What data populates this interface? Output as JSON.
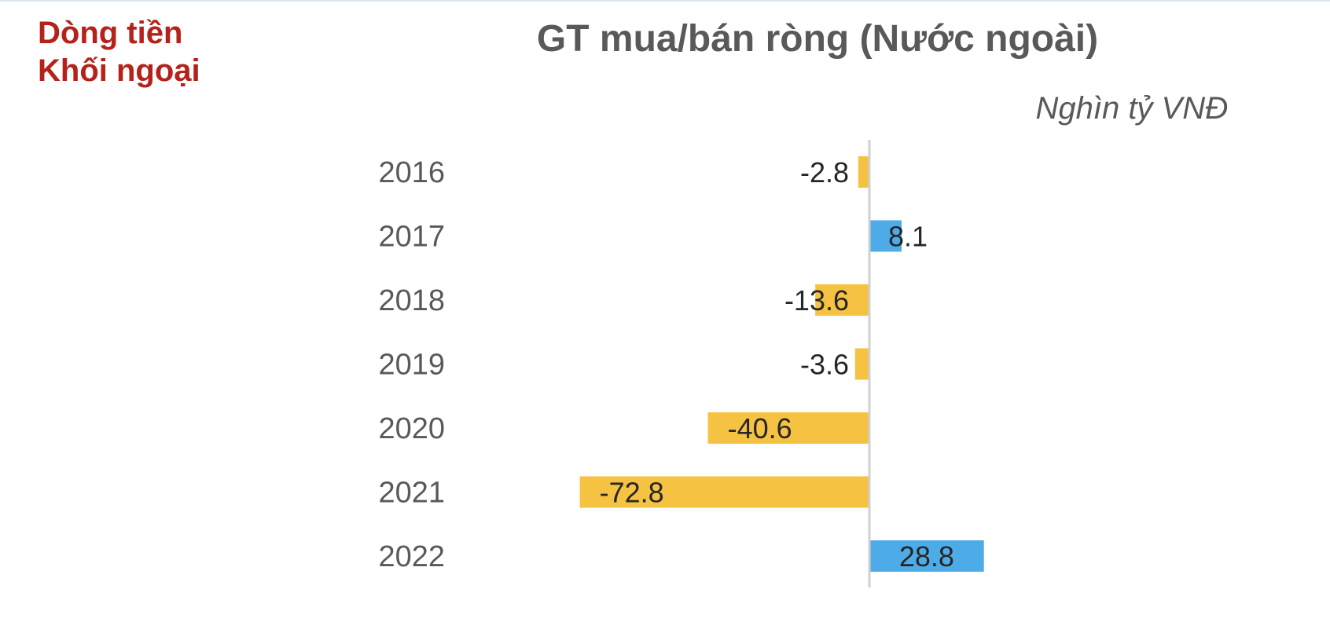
{
  "section_label": {
    "line1": "Dòng tiền",
    "line2": "Khối ngoại",
    "color": "#b5221a"
  },
  "chart_data": {
    "type": "bar",
    "orientation": "horizontal",
    "title": "GT mua/bán ròng (Nước ngoài)",
    "unit": "Nghìn tỷ VNĐ",
    "categories": [
      "2016",
      "2017",
      "2018",
      "2019",
      "2020",
      "2021",
      "2022"
    ],
    "values": [
      -2.8,
      8.1,
      -13.6,
      -3.6,
      -40.6,
      -72.8,
      28.8
    ],
    "value_labels": [
      "-2.8",
      "8.1",
      "-13.6",
      "-3.6",
      "-40.6",
      "-72.8",
      "28.8"
    ],
    "colors": {
      "positive": "#4dabe8",
      "negative": "#f5c242",
      "axis": "#d0d0d0"
    },
    "xlim": [
      -85,
      95
    ],
    "grid": false,
    "legend": "none"
  }
}
